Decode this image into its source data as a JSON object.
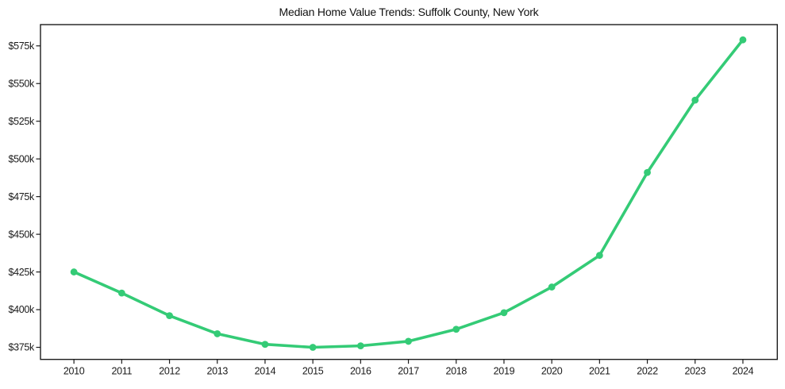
{
  "chart_data": {
    "type": "line",
    "title": "Median Home Value Trends: Suffolk County, New York",
    "xlabel": "",
    "ylabel": "",
    "x": [
      2010,
      2011,
      2012,
      2013,
      2014,
      2015,
      2016,
      2017,
      2018,
      2019,
      2020,
      2021,
      2022,
      2023,
      2024
    ],
    "x_tick_labels": [
      "2010",
      "2011",
      "2012",
      "2013",
      "2014",
      "2015",
      "2016",
      "2017",
      "2018",
      "2019",
      "2020",
      "2021",
      "2022",
      "2023",
      "2024"
    ],
    "values": [
      425000,
      411000,
      396000,
      384000,
      377000,
      375000,
      376000,
      379000,
      387000,
      398000,
      415000,
      436000,
      491000,
      539000,
      579000
    ],
    "y_ticks": [
      {
        "value": 375000,
        "label": "$375k"
      },
      {
        "value": 400000,
        "label": "$400k"
      },
      {
        "value": 425000,
        "label": "$425k"
      },
      {
        "value": 450000,
        "label": "$450k"
      },
      {
        "value": 475000,
        "label": "$475k"
      },
      {
        "value": 500000,
        "label": "$500k"
      },
      {
        "value": 525000,
        "label": "$525k"
      },
      {
        "value": 550000,
        "label": "$550k"
      },
      {
        "value": 575000,
        "label": "$575k"
      }
    ],
    "xlim": [
      2009.3,
      2024.72
    ],
    "ylim": [
      367000,
      589100
    ],
    "grid": false,
    "legend": false,
    "line_color": "#34cb76",
    "axis_color": "#1c1c1c",
    "marker_style": "circle"
  }
}
